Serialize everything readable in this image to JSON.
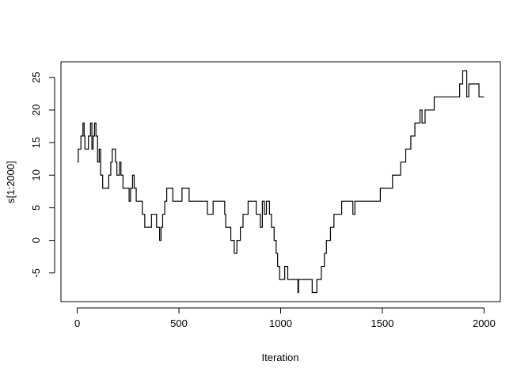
{
  "chart_data": {
    "type": "line",
    "title": "",
    "xlabel": "Iteration",
    "ylabel": "s[1:2000]",
    "xlim": [
      -80,
      2080
    ],
    "ylim": [
      -9.4,
      27.4
    ],
    "x_ticks": [
      0,
      500,
      1000,
      1500,
      2000
    ],
    "y_ticks": [
      -5,
      0,
      5,
      10,
      15,
      20,
      25
    ],
    "grid": false,
    "legend": "none",
    "line_color": "#000000",
    "series": [
      {
        "step": true,
        "points": [
          [
            1,
            12
          ],
          [
            5,
            14
          ],
          [
            18,
            16
          ],
          [
            28,
            18
          ],
          [
            34,
            16
          ],
          [
            38,
            14
          ],
          [
            55,
            16
          ],
          [
            65,
            18
          ],
          [
            72,
            14
          ],
          [
            78,
            16
          ],
          [
            85,
            18
          ],
          [
            92,
            16
          ],
          [
            100,
            12
          ],
          [
            108,
            14
          ],
          [
            115,
            10
          ],
          [
            125,
            8
          ],
          [
            155,
            10
          ],
          [
            165,
            12
          ],
          [
            172,
            14
          ],
          [
            188,
            12
          ],
          [
            195,
            10
          ],
          [
            208,
            12
          ],
          [
            215,
            10
          ],
          [
            225,
            8
          ],
          [
            255,
            6
          ],
          [
            262,
            8
          ],
          [
            272,
            10
          ],
          [
            280,
            8
          ],
          [
            290,
            6
          ],
          [
            320,
            4
          ],
          [
            332,
            2
          ],
          [
            365,
            4
          ],
          [
            390,
            2
          ],
          [
            405,
            0
          ],
          [
            412,
            2
          ],
          [
            420,
            4
          ],
          [
            430,
            6
          ],
          [
            440,
            8
          ],
          [
            470,
            6
          ],
          [
            515,
            8
          ],
          [
            550,
            6
          ],
          [
            600,
            6
          ],
          [
            640,
            4
          ],
          [
            668,
            6
          ],
          [
            725,
            4
          ],
          [
            730,
            2
          ],
          [
            755,
            0
          ],
          [
            772,
            -2
          ],
          [
            785,
            0
          ],
          [
            802,
            2
          ],
          [
            815,
            4
          ],
          [
            840,
            6
          ],
          [
            880,
            4
          ],
          [
            900,
            2
          ],
          [
            910,
            6
          ],
          [
            920,
            4
          ],
          [
            930,
            6
          ],
          [
            945,
            4
          ],
          [
            955,
            2
          ],
          [
            968,
            0
          ],
          [
            978,
            -2
          ],
          [
            985,
            -4
          ],
          [
            995,
            -6
          ],
          [
            1020,
            -4
          ],
          [
            1035,
            -6
          ],
          [
            1085,
            -8
          ],
          [
            1088,
            -6
          ],
          [
            1155,
            -8
          ],
          [
            1178,
            -6
          ],
          [
            1200,
            -4
          ],
          [
            1215,
            -2
          ],
          [
            1225,
            0
          ],
          [
            1245,
            2
          ],
          [
            1262,
            4
          ],
          [
            1300,
            6
          ],
          [
            1340,
            6
          ],
          [
            1355,
            4
          ],
          [
            1365,
            6
          ],
          [
            1450,
            6
          ],
          [
            1490,
            8
          ],
          [
            1550,
            10
          ],
          [
            1590,
            12
          ],
          [
            1615,
            14
          ],
          [
            1640,
            16
          ],
          [
            1660,
            18
          ],
          [
            1685,
            20
          ],
          [
            1695,
            18
          ],
          [
            1710,
            20
          ],
          [
            1755,
            22
          ],
          [
            1855,
            22
          ],
          [
            1880,
            24
          ],
          [
            1895,
            26
          ],
          [
            1915,
            22
          ],
          [
            1925,
            24
          ],
          [
            1975,
            22
          ],
          [
            2000,
            22
          ]
        ]
      }
    ]
  }
}
